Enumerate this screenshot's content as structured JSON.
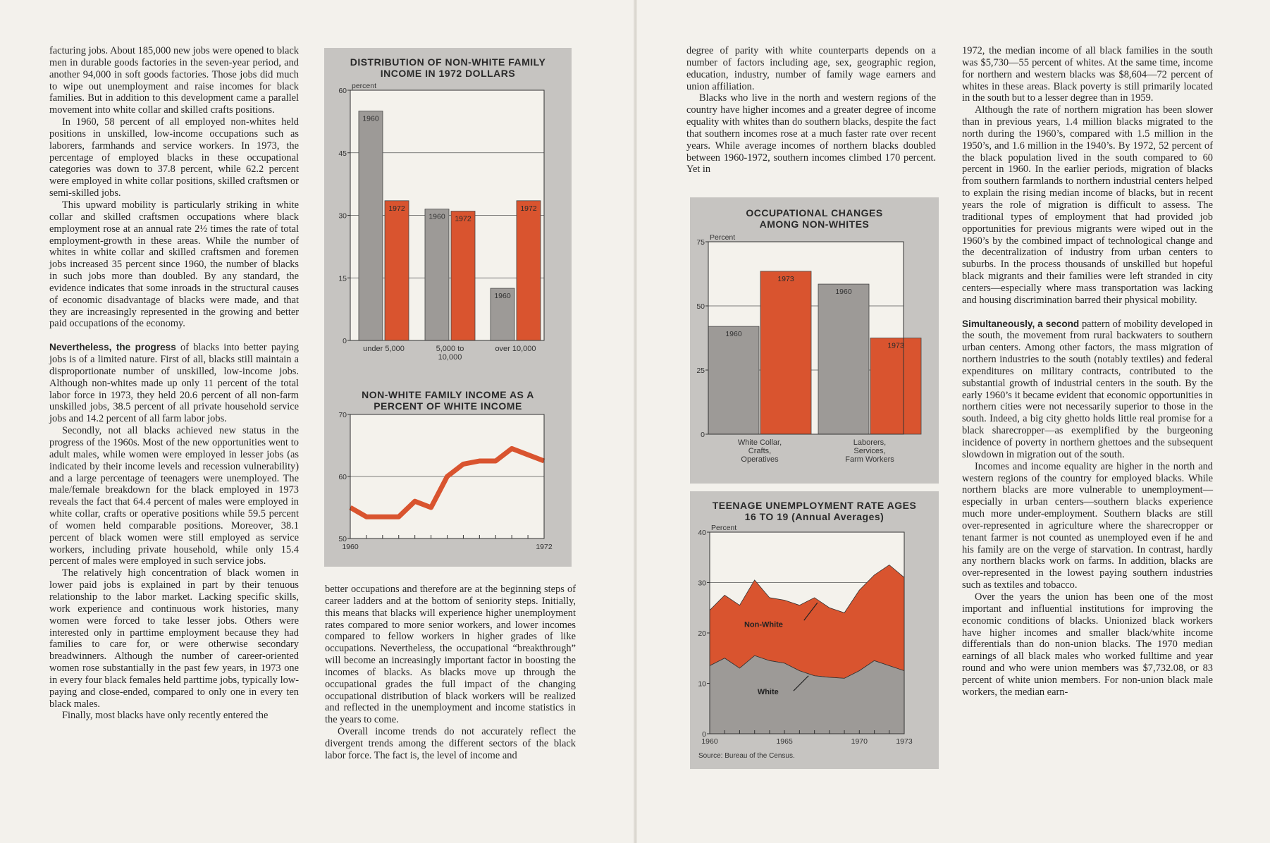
{
  "colors": {
    "gray_bar": "#9d9a97",
    "orange": "#d9542f",
    "panel": "#c6c4c1",
    "plot_bg": "#f4f2ec"
  },
  "col1": {
    "p1": "facturing jobs. About 185,000 new jobs were opened to black men in durable goods factories in the seven-year period, and another 94,000 in soft goods factories. Those jobs did much to wipe out unemployment and raise incomes for black families. But in addition to this development came a parallel movement into white collar and skilled crafts positions.",
    "p2": "In 1960, 58 percent of all employed non-whites held positions in unskilled, low-income occupations such as laborers, farmhands and service workers. In 1973, the percentage of employed blacks in these occupational categories was down to 37.8 percent, while 62.2 percent were employed in white collar positions, skilled craftsmen or semi-skilled jobs.",
    "p3": "This upward mobility is particularly striking in white collar and skilled craftsmen occupations where black employment rose at an annual rate 2½ times the rate of total employment-growth in these areas. While the number of whites in white collar and skilled craftsmen and foremen jobs increased 35 percent since 1960, the number of blacks in such jobs more than doubled. By any standard, the evidence indicates that some inroads in the structural causes of economic disadvantage of blacks were made, and that they are increasingly represented in the growing and better paid occupations of the economy.",
    "p4_runin": "Nevertheless, the progress",
    "p4": " of blacks into better paying jobs is of a limited nature. First of all, blacks still maintain a disproportionate number of unskilled, low-income jobs. Although non-whites made up only 11 percent of the total labor force in 1973, they held 20.6 percent of all non-farm unskilled jobs, 38.5 percent of all private household service jobs and 14.2 percent of all farm labor jobs.",
    "p5": "Secondly, not all blacks achieved new status in the progress of the 1960s. Most of the new opportunities went to adult males, while women were employed in lesser jobs (as indicated by their income levels and recession vulnerability) and a large percentage of teenagers were unemployed. The male/female breakdown for the black employed in 1973 reveals the fact that 64.4 percent of males were employed in white collar, crafts or operative positions while 59.5 percent of women held comparable positions. Moreover, 38.1 percent of black women were still employed as service workers, including private household, while only 15.4 percent of males were employed in such service jobs.",
    "p6": "The relatively high concentration of black women in lower paid jobs is explained in part by their tenuous relationship to the labor market. Lacking specific skills, work experience and continuous work histories, many women were forced to take lesser jobs. Others were interested only in parttime employment because they had families to care for, or were otherwise secondary breadwinners. Although the number of career-oriented women rose substantially in the past few years, in 1973 one in every four black females held parttime jobs, typically low-paying and close-ended, compared to only one in every ten black males.",
    "p7": "Finally, most blacks have only recently entered the"
  },
  "col2": {
    "p1": "better occupations and therefore are at the beginning steps of career ladders and at the bottom of seniority steps. Initially, this means that blacks will experience higher unemployment rates compared to more senior workers, and lower incomes compared to fellow workers in higher grades of like occupations. Nevertheless, the occupational “breakthrough” will become an increasingly important factor in boosting the incomes of blacks. As blacks move up through the occupational grades the full impact of the changing occupational distribution of black workers will be realized and reflected in the unemployment and income statistics in the years to come.",
    "p2": "Overall income trends do not accurately reflect the divergent trends among the different sectors of the black labor force. The fact is, the level of income and"
  },
  "col3": {
    "p1": "degree of parity with white counterparts depends on a number of factors including age, sex, geographic region, education, industry, number of family wage earners and union affiliation.",
    "p2": "Blacks who live in the north and western regions of the country have higher incomes and a greater degree of income equality with whites than do southern blacks, despite the fact that southern incomes rose at a much faster rate over recent years. While average incomes of northern blacks doubled between 1960-1972, southern incomes climbed 170 percent. Yet in"
  },
  "col4": {
    "p1": "1972, the median income of all black families in the south was $5,730—55 percent of whites. At the same time, income for northern and western blacks was $8,604—72 percent of whites in these areas. Black poverty is still primarily located in the south but to a lesser degree than in 1959.",
    "p2": "Although the rate of northern migration has been slower than in previous years, 1.4 million blacks migrated to the north during the 1960’s, compared with 1.5 million in the 1950’s, and 1.6 million in the 1940’s. By 1972, 52 percent of the black population lived in the south compared to 60 percent in 1960. In the earlier periods, migration of blacks from southern farmlands to northern industrial centers helped to explain the rising median income of blacks, but in recent years the role of migration is difficult to assess. The traditional types of employment that had provided job opportunities for previous migrants were wiped out in the 1960’s by the combined impact of technological change and the decentralization of industry from urban centers to suburbs. In the process thousands of unskilled but hopeful black migrants and their families were left stranded in city centers—especially where mass transportation was lacking and housing discrimination barred their physical mobility.",
    "p3_runin": "Simultaneously, a second",
    "p3": " pattern of mobility developed in the south, the movement from rural backwaters to southern urban centers. Among other factors, the mass migration of northern industries to the south (notably textiles) and federal expenditures on military contracts, contributed to the substantial growth of industrial centers in the south. By the early 1960’s it became evident that economic opportunities in northern cities were not necessarily superior to those in the south. Indeed, a big city ghetto holds little real promise for a black sharecropper—as exemplified by the burgeoning incidence of poverty in northern ghettoes and the subsequent slowdown in migration out of the south.",
    "p4": "Incomes and income equality are higher in the north and western regions of the country for employed blacks. While northern blacks are more vulnerable to unemployment—especially in urban centers—southern blacks experience much more under-employment. Southern blacks are still over-represented in agriculture where the sharecropper or tenant farmer is not counted as unemployed even if he and his family are on the verge of starvation. In contrast, hardly any northern blacks work on farms. In addition, blacks are over-represented in the lowest paying southern industries such as textiles and tobacco.",
    "p5": "Over the years the union has been one of the most important and influential institutions for improving the economic conditions of blacks. Unionized black workers have higher incomes and smaller black/white income differentials than do non-union blacks. The 1970 median earnings of all black males who worked fulltime and year round and who were union members was $7,732.08, or 83 percent of white union members. For non-union black male workers, the median earn-"
  },
  "chart_data": [
    {
      "type": "bar",
      "title": "DISTRIBUTION OF NON-WHITE FAMILY INCOME IN 1972 DOLLARS",
      "ylabel": "percent",
      "ylim": [
        0,
        60
      ],
      "yticks": [
        "0",
        "15",
        "30",
        "45",
        "60"
      ],
      "categories": [
        "under 5,000",
        "5,000 to 10,000",
        "over 10,000"
      ],
      "category_lines": [
        [
          "under 5,000"
        ],
        [
          "5,000 to",
          "10,000"
        ],
        [
          "over 10,000"
        ]
      ],
      "series": [
        {
          "name": "1960",
          "values": [
            55,
            31.5,
            12.5
          ]
        },
        {
          "name": "1972",
          "values": [
            33.5,
            31,
            33.5
          ]
        }
      ]
    },
    {
      "type": "line",
      "title": "NON-WHITE FAMILY INCOME AS A PERCENT OF WHITE INCOME",
      "ylim": [
        50,
        70
      ],
      "yticks": [
        "50",
        "60",
        "70"
      ],
      "xlabels": [
        "1960",
        "1972"
      ],
      "x": [
        1960,
        1961,
        1962,
        1963,
        1964,
        1965,
        1966,
        1967,
        1968,
        1969,
        1970,
        1971,
        1972
      ],
      "values": [
        55,
        53.5,
        53.5,
        53.5,
        56,
        55,
        60,
        62,
        62.5,
        62.5,
        64.5,
        63.5,
        62.5
      ]
    },
    {
      "type": "bar",
      "title": "OCCUPATIONAL CHANGES AMONG NON-WHITES",
      "ylabel": "Percent",
      "ylim": [
        0,
        75
      ],
      "yticks": [
        "0",
        "25",
        "50",
        "75"
      ],
      "categories": [
        "White Collar, Crafts, Operatives",
        "Laborers, Services, Farm Workers"
      ],
      "category_lines": [
        [
          "White Collar,",
          "Crafts,",
          "Operatives"
        ],
        [
          "Laborers,",
          "Services,",
          "Farm Workers"
        ]
      ],
      "series": [
        {
          "name": "1960",
          "values": [
            42,
            58.5
          ]
        },
        {
          "name": "1973",
          "values": [
            63.5,
            37.5
          ]
        }
      ]
    },
    {
      "type": "area",
      "title": "TEENAGE UNEMPLOYMENT RATE AGES 16 TO 19 (Annual Averages)",
      "ylabel": "Percent",
      "ylim": [
        0,
        40
      ],
      "yticks": [
        "0",
        "10",
        "20",
        "30",
        "40"
      ],
      "xlabels": [
        "1960",
        "1965",
        "1970",
        "1973"
      ],
      "x": [
        1960,
        1961,
        1962,
        1963,
        1964,
        1965,
        1966,
        1967,
        1968,
        1969,
        1970,
        1971,
        1972,
        1973
      ],
      "series": [
        {
          "name": "Non-White",
          "values": [
            24.5,
            27.5,
            25.5,
            30.5,
            27,
            26.5,
            25.5,
            27,
            25,
            24,
            28.5,
            31.5,
            33.5,
            31
          ]
        },
        {
          "name": "White",
          "values": [
            13.5,
            15,
            13,
            15.5,
            14.5,
            14,
            12.5,
            11.5,
            11.2,
            11,
            12.5,
            14.5,
            13.5,
            12.5
          ]
        }
      ],
      "labels": [
        "Non-White",
        "White"
      ],
      "source": "Source: Bureau of the Census."
    }
  ]
}
